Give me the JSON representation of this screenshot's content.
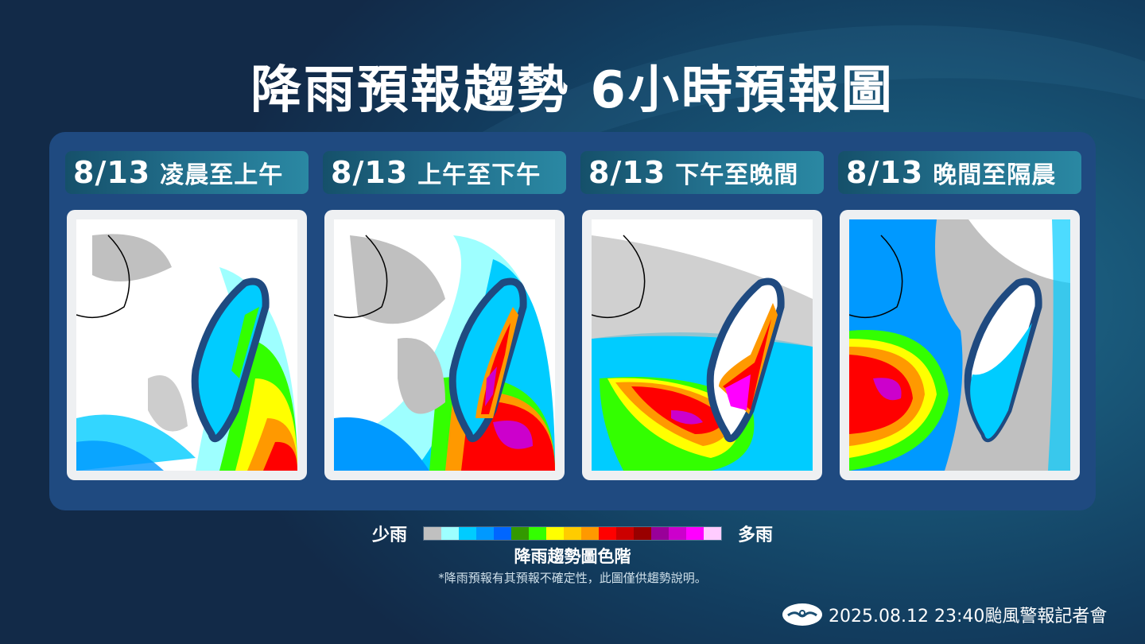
{
  "title": "降雨預報趨勢  6小時預報圖",
  "panels": [
    {
      "date": "8/13",
      "period": "凌晨至上午",
      "rain_focus": "east-coast-light",
      "max_level": "red"
    },
    {
      "date": "8/13",
      "period": "上午至下午",
      "rain_focus": "central-mountains-south",
      "max_level": "magenta"
    },
    {
      "date": "8/13",
      "period": "下午至晚間",
      "rain_focus": "southwest-and-south",
      "max_level": "magenta"
    },
    {
      "date": "8/13",
      "period": "晚間至隔晨",
      "rain_focus": "taiwan-strait-west",
      "max_level": "magenta"
    }
  ],
  "legend": {
    "low_label": "少雨",
    "high_label": "多雨",
    "title": "降雨趨勢圖色階",
    "colors": [
      "#c0c0c0",
      "#9effff",
      "#00ccff",
      "#0099ff",
      "#0066ff",
      "#339900",
      "#33ff00",
      "#ffff00",
      "#ffcc00",
      "#ff9900",
      "#ff0000",
      "#cc0000",
      "#990000",
      "#990099",
      "#cc00cc",
      "#ff00ff",
      "#ffccff"
    ]
  },
  "note": "*降雨預報有其預報不確定性，此圖僅供趨勢說明。",
  "footer": {
    "logo_icon": "cwa-logo-icon",
    "text": "2025.08.12  23:40颱風警報記者會"
  },
  "chart_data": {
    "type": "heatmap",
    "title": "降雨預報趨勢 6小時預報圖",
    "panels": [
      {
        "label": "8/13 凌晨至上午",
        "heavy_rain_region": "east of Taiwan offshore, southeast corner",
        "taiwan_land_rain": "light-moderate (blue/green) east side"
      },
      {
        "label": "8/13 上午至下午",
        "heavy_rain_region": "central mountains & south; offshore southeast",
        "taiwan_land_rain": "heavy to extreme (red/purple) south-central"
      },
      {
        "label": "8/13 下午至晚間",
        "heavy_rain_region": "southwest sea & southern Taiwan",
        "taiwan_land_rain": "extreme (purple) south"
      },
      {
        "label": "8/13 晚間至隔晨",
        "heavy_rain_region": "Taiwan Strait west side",
        "taiwan_land_rain": "light (blue) most areas"
      }
    ],
    "color_scale": [
      "gray",
      "light-cyan",
      "cyan",
      "sky-blue",
      "blue",
      "dark-green",
      "green",
      "yellow",
      "gold",
      "orange",
      "red",
      "dark-red",
      "maroon",
      "purple",
      "violet",
      "magenta",
      "pink"
    ],
    "legend_position": "bottom"
  }
}
